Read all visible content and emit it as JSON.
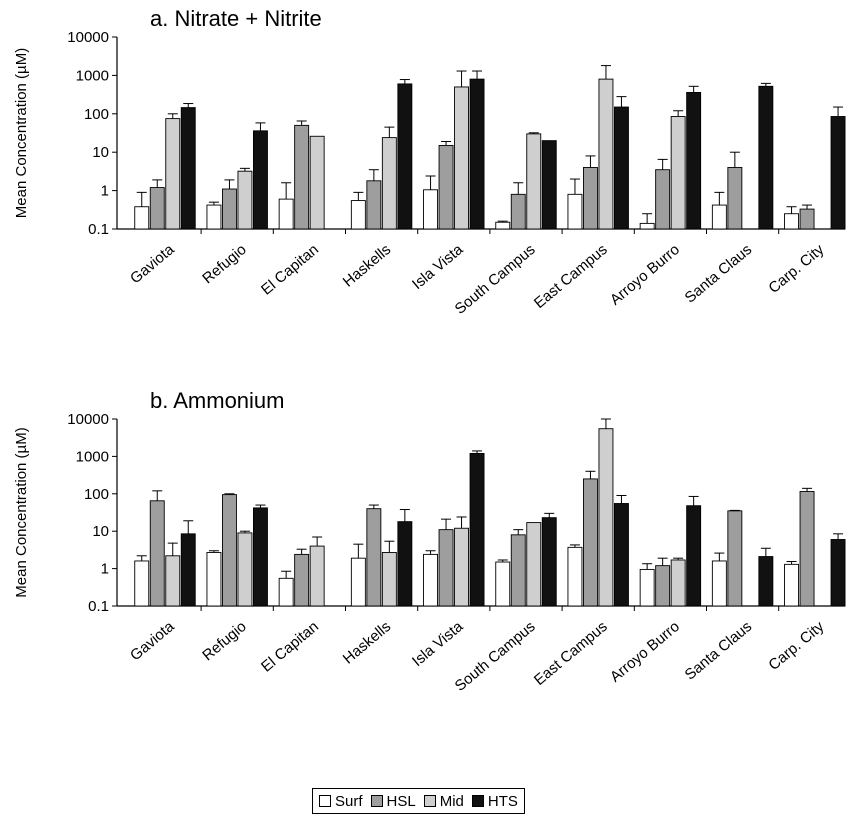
{
  "legend": [
    {
      "name": "Surf",
      "color": "#ffffff"
    },
    {
      "name": "HSL",
      "color": "#9e9e9e"
    },
    {
      "name": "Mid",
      "color": "#cfcfcf"
    },
    {
      "name": "HTS",
      "color": "#111111"
    }
  ],
  "chart_data": [
    {
      "type": "bar",
      "title": "a. Nitrate + Nitrite",
      "ylabel": "Mean Concentration (µM)",
      "yscale": "log",
      "ylim": [
        0.1,
        10000
      ],
      "yticks": [
        "0.1",
        "1",
        "10",
        "100",
        "1000",
        "10000"
      ],
      "categories": [
        "Gaviota",
        "Refugio",
        "El  Capitan",
        "Haskells",
        "Isla Vista",
        "South Campus",
        "East Campus",
        "Arroyo Burro",
        "Santa Claus",
        "Carp. City"
      ],
      "series": [
        {
          "name": "Surf",
          "values": [
            0.38,
            0.42,
            0.6,
            0.55,
            1.05,
            0.15,
            0.8,
            0.14,
            0.42,
            0.25
          ],
          "errors": [
            0.9,
            0.5,
            1.6,
            0.9,
            2.4,
            0.16,
            2.0,
            0.25,
            0.9,
            0.38
          ]
        },
        {
          "name": "HSL",
          "values": [
            1.2,
            1.1,
            50,
            1.8,
            15,
            0.8,
            4,
            3.5,
            4,
            0.33
          ],
          "errors": [
            1.9,
            1.9,
            65,
            3.5,
            19,
            1.6,
            8,
            6.5,
            10,
            0.42
          ]
        },
        {
          "name": "Mid",
          "values": [
            75,
            3.2,
            26,
            24,
            500,
            30,
            800,
            85,
            null,
            null
          ],
          "errors": [
            100,
            3.8,
            null,
            45,
            1300,
            32,
            1800,
            120,
            null,
            null
          ]
        },
        {
          "name": "HTS",
          "values": [
            145,
            36,
            null,
            600,
            800,
            20,
            150,
            360,
            520,
            85
          ],
          "errors": [
            185,
            58,
            null,
            780,
            1300,
            null,
            280,
            520,
            620,
            150
          ]
        }
      ]
    },
    {
      "type": "bar",
      "title": "b. Ammonium",
      "ylabel": "Mean Concentration (µM)",
      "yscale": "log",
      "ylim": [
        0.1,
        10000
      ],
      "yticks": [
        "0.1",
        "1",
        "10",
        "100",
        "1000",
        "10000"
      ],
      "categories": [
        "Gaviota",
        "Refugio",
        "El  Capitan",
        "Haskells",
        "Isla Vista",
        "South Campus",
        "East Campus",
        "Arroyo Burro",
        "Santa Claus",
        "Carp. City"
      ],
      "series": [
        {
          "name": "Surf",
          "values": [
            1.6,
            2.7,
            0.55,
            1.9,
            2.4,
            1.5,
            3.7,
            0.95,
            1.6,
            1.3
          ],
          "errors": [
            2.2,
            3.0,
            0.85,
            4.5,
            3.0,
            1.7,
            4.3,
            1.35,
            2.6,
            1.55
          ]
        },
        {
          "name": "HSL",
          "values": [
            65,
            95,
            2.4,
            40,
            11,
            8,
            250,
            1.2,
            35,
            115
          ],
          "errors": [
            120,
            100,
            3.3,
            50,
            21,
            11,
            400,
            1.9,
            36,
            140
          ]
        },
        {
          "name": "Mid",
          "values": [
            2.2,
            9,
            4,
            2.7,
            12,
            17,
            5500,
            1.7,
            null,
            null
          ],
          "errors": [
            4.8,
            10,
            7,
            5.4,
            24,
            null,
            10000,
            1.9,
            null,
            null
          ]
        },
        {
          "name": "HTS",
          "values": [
            8.5,
            42,
            null,
            18,
            1200,
            23,
            55,
            48,
            2.1,
            6
          ],
          "errors": [
            19,
            50,
            null,
            38,
            1400,
            30,
            90,
            85,
            3.5,
            8.5
          ]
        }
      ]
    }
  ]
}
